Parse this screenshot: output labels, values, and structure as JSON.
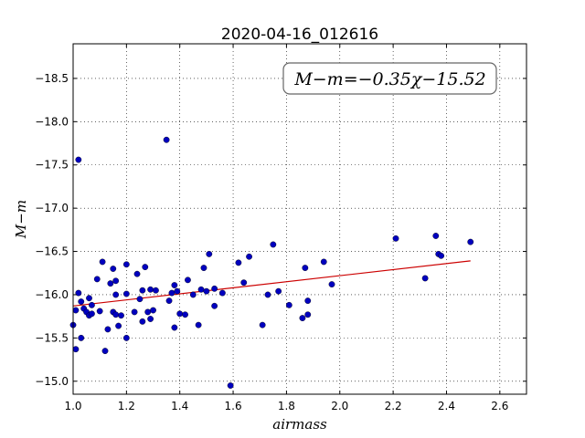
{
  "chart_data": {
    "type": "scatter",
    "title": "2020-04-16_012616",
    "xlabel": "airmass",
    "ylabel": "M−m",
    "annotation": "M−m=−0.35χ−15.52",
    "xlim": [
      1.0,
      2.7
    ],
    "ylim": [
      -18.9,
      -14.85
    ],
    "y_inverted": true,
    "grid": true,
    "x_ticks": [
      1.0,
      1.2,
      1.4,
      1.6,
      1.8,
      2.0,
      2.2,
      2.4,
      2.6
    ],
    "x_tick_labels": [
      "1.0",
      "1.2",
      "1.4",
      "1.6",
      "1.8",
      "2.0",
      "2.2",
      "2.4",
      "2.6"
    ],
    "y_ticks": [
      -15.0,
      -15.5,
      -16.0,
      -16.5,
      -17.0,
      -17.5,
      -18.0,
      -18.5
    ],
    "y_tick_labels": [
      "−15.0",
      "−15.5",
      "−16.0",
      "−16.5",
      "−17.0",
      "−17.5",
      "−18.0",
      "−18.5"
    ],
    "fit": {
      "slope": -0.35,
      "intercept": -15.52,
      "x_range": [
        1.0,
        2.49
      ],
      "color": "#cc0000"
    },
    "point_color": "#0000bf",
    "series": [
      {
        "points": [
          [
            1.0,
            -15.65
          ],
          [
            1.01,
            -15.82
          ],
          [
            1.01,
            -15.37
          ],
          [
            1.02,
            -16.02
          ],
          [
            1.03,
            -15.92
          ],
          [
            1.03,
            -15.5
          ],
          [
            1.04,
            -15.84
          ],
          [
            1.05,
            -15.8
          ],
          [
            1.06,
            -15.96
          ],
          [
            1.06,
            -15.76
          ],
          [
            1.07,
            -15.78
          ],
          [
            1.07,
            -15.88
          ],
          [
            1.09,
            -16.18
          ],
          [
            1.1,
            -15.81
          ],
          [
            1.11,
            -16.38
          ],
          [
            1.12,
            -15.35
          ],
          [
            1.13,
            -15.6
          ],
          [
            1.14,
            -16.13
          ],
          [
            1.15,
            -16.3
          ],
          [
            1.15,
            -15.8
          ],
          [
            1.16,
            -15.77
          ],
          [
            1.16,
            -16.0
          ],
          [
            1.16,
            -16.16
          ],
          [
            1.17,
            -15.64
          ],
          [
            1.18,
            -15.76
          ],
          [
            1.2,
            -15.5
          ],
          [
            1.2,
            -16.01
          ],
          [
            1.2,
            -16.35
          ],
          [
            1.23,
            -15.8
          ],
          [
            1.24,
            -16.24
          ],
          [
            1.25,
            -15.95
          ],
          [
            1.26,
            -15.69
          ],
          [
            1.26,
            -16.05
          ],
          [
            1.27,
            -16.32
          ],
          [
            1.28,
            -15.8
          ],
          [
            1.29,
            -16.06
          ],
          [
            1.29,
            -15.72
          ],
          [
            1.3,
            -15.82
          ],
          [
            1.31,
            -16.05
          ],
          [
            1.36,
            -15.93
          ],
          [
            1.37,
            -16.02
          ],
          [
            1.38,
            -16.11
          ],
          [
            1.38,
            -15.62
          ],
          [
            1.39,
            -16.04
          ],
          [
            1.4,
            -15.78
          ],
          [
            1.42,
            -15.77
          ],
          [
            1.43,
            -16.17
          ],
          [
            1.45,
            -16.0
          ],
          [
            1.47,
            -15.65
          ],
          [
            1.48,
            -16.06
          ],
          [
            1.49,
            -16.31
          ],
          [
            1.5,
            -16.04
          ],
          [
            1.51,
            -16.47
          ],
          [
            1.53,
            -16.07
          ],
          [
            1.53,
            -15.87
          ],
          [
            1.56,
            -16.02
          ],
          [
            1.59,
            -14.95
          ],
          [
            1.62,
            -16.37
          ],
          [
            1.64,
            -16.14
          ],
          [
            1.66,
            -16.44
          ],
          [
            1.71,
            -15.65
          ],
          [
            1.73,
            -16.0
          ],
          [
            1.75,
            -16.58
          ],
          [
            1.77,
            -16.04
          ],
          [
            1.81,
            -15.88
          ],
          [
            1.86,
            -15.73
          ],
          [
            1.87,
            -16.31
          ],
          [
            1.88,
            -15.77
          ],
          [
            1.88,
            -15.93
          ],
          [
            1.94,
            -16.38
          ],
          [
            1.97,
            -16.12
          ],
          [
            2.21,
            -16.65
          ],
          [
            2.32,
            -16.19
          ],
          [
            2.36,
            -16.68
          ],
          [
            2.37,
            -16.47
          ],
          [
            2.38,
            -16.45
          ],
          [
            2.49,
            -16.61
          ],
          [
            1.02,
            -17.56
          ],
          [
            1.35,
            -17.79
          ]
        ]
      }
    ]
  }
}
